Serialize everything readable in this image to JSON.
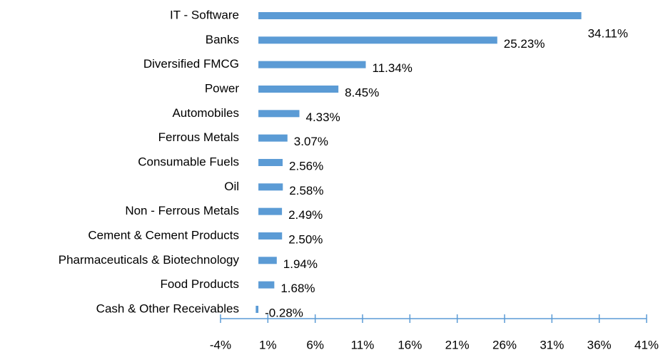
{
  "chart_data": {
    "type": "hbar",
    "categories": [
      "IT - Software",
      "Banks",
      "Diversified FMCG",
      "Power",
      "Automobiles",
      "Ferrous Metals",
      "Consumable Fuels",
      "Oil",
      "Non - Ferrous Metals",
      "Cement & Cement Products",
      "Pharmaceuticals & Biotechnology",
      "Food Products",
      "Cash & Other Receivables"
    ],
    "values": [
      34.11,
      25.23,
      11.34,
      8.45,
      4.33,
      3.07,
      2.56,
      2.58,
      2.49,
      2.5,
      1.94,
      1.68,
      -0.28
    ],
    "value_labels": [
      "34.11%",
      "25.23%",
      "11.34%",
      "8.45%",
      "4.33%",
      "3.07%",
      "2.56%",
      "2.58%",
      "2.49%",
      "2.50%",
      "1.94%",
      "1.68%",
      "-0.28%"
    ],
    "color": "#5b9bd5",
    "xlim": [
      -4,
      41
    ],
    "xticks": [
      {
        "value": -4,
        "label": "-4%"
      },
      {
        "value": 1,
        "label": "1%"
      },
      {
        "value": 6,
        "label": "6%"
      },
      {
        "value": 11,
        "label": "11%"
      },
      {
        "value": 16,
        "label": "16%"
      },
      {
        "value": 21,
        "label": "21%"
      },
      {
        "value": 26,
        "label": "26%"
      },
      {
        "value": 31,
        "label": "31%"
      },
      {
        "value": 36,
        "label": "36%"
      },
      {
        "value": 41,
        "label": "41%"
      }
    ]
  }
}
